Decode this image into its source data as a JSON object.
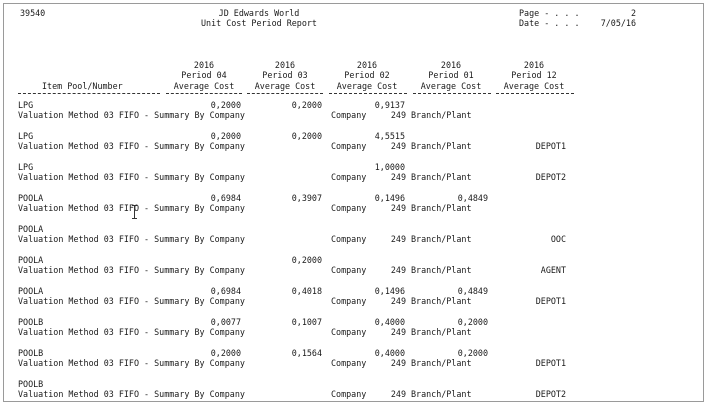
{
  "header": {
    "program_id": "39540",
    "company_name": "JD Edwards World",
    "report_title": "Unit Cost Period Report",
    "page_label": "Page - . . .",
    "page_number": "2",
    "date_label": "Date - . . .",
    "date_value": "7/05/16"
  },
  "columns": {
    "item_pool": "Item Pool/Number",
    "periods": [
      {
        "year": "2016",
        "period": "Period 04",
        "label": "Average Cost"
      },
      {
        "year": "2016",
        "period": "Period 03",
        "label": "Average Cost"
      },
      {
        "year": "2016",
        "period": "Period 02",
        "label": "Average Cost"
      },
      {
        "year": "2016",
        "period": "Period 01",
        "label": "Average Cost"
      },
      {
        "year": "2016",
        "period": "Period 12",
        "label": "Average Cost"
      }
    ]
  },
  "records": [
    {
      "pool": "LPG",
      "p04": "0,2000",
      "p03": "0,2000",
      "p02": "0,9137",
      "p01": "",
      "method": "Valuation Method 03 FIFO - Summary By Company",
      "company_label": "Company",
      "company": "249",
      "branch_label": "Branch/Plant",
      "branch": ""
    },
    {
      "pool": "LPG",
      "p04": "0,2000",
      "p03": "0,2000",
      "p02": "4,5515",
      "p01": "",
      "method": "Valuation Method 03 FIFO - Summary By Company",
      "company_label": "Company",
      "company": "249",
      "branch_label": "Branch/Plant",
      "branch": "DEPOT1"
    },
    {
      "pool": "LPG",
      "p04": "",
      "p03": "",
      "p02": "1,0000",
      "p01": "",
      "method": "Valuation Method 03 FIFO - Summary By Company",
      "company_label": "Company",
      "company": "249",
      "branch_label": "Branch/Plant",
      "branch": "DEPOT2"
    },
    {
      "pool": "POOLA",
      "p04": "0,6984",
      "p03": "0,3907",
      "p02": "0,1496",
      "p01": "0,4849",
      "method": "Valuation Method 03 FIFO - Summary By Company",
      "company_label": "Company",
      "company": "249",
      "branch_label": "Branch/Plant",
      "branch": ""
    },
    {
      "pool": "POOLA",
      "p04": "",
      "p03": "",
      "p02": "",
      "p01": "",
      "method": "Valuation Method 03 FIFO - Summary By Company",
      "company_label": "Company",
      "company": "249",
      "branch_label": "Branch/Plant",
      "branch": "OOC"
    },
    {
      "pool": "POOLA",
      "p04": "",
      "p03": "0,2000",
      "p02": "",
      "p01": "",
      "method": "Valuation Method 03 FIFO - Summary By Company",
      "company_label": "Company",
      "company": "249",
      "branch_label": "Branch/Plant",
      "branch": "AGENT"
    },
    {
      "pool": "POOLA",
      "p04": "0,6984",
      "p03": "0,4018",
      "p02": "0,1496",
      "p01": "0,4849",
      "method": "Valuation Method 03 FIFO - Summary By Company",
      "company_label": "Company",
      "company": "249",
      "branch_label": "Branch/Plant",
      "branch": "DEPOT1"
    },
    {
      "pool": "POOLB",
      "p04": "0,0077",
      "p03": "0,1007",
      "p02": "0,4000",
      "p01": "0,2000",
      "method": "Valuation Method 03 FIFO - Summary By Company",
      "company_label": "Company",
      "company": "249",
      "branch_label": "Branch/Plant",
      "branch": ""
    },
    {
      "pool": "POOLB",
      "p04": "0,2000",
      "p03": "0,1564",
      "p02": "0,4000",
      "p01": "0,2000",
      "method": "Valuation Method 03 FIFO - Summary By Company",
      "company_label": "Company",
      "company": "249",
      "branch_label": "Branch/Plant",
      "branch": "DEPOT1"
    },
    {
      "pool": "POOLB",
      "p04": "",
      "p03": "",
      "p02": "",
      "p01": "",
      "method": "Valuation Method 03 FIFO - Summary By Company",
      "company_label": "Company",
      "company": "249",
      "branch_label": "Branch/Plant",
      "branch": "DEPOT2"
    }
  ]
}
